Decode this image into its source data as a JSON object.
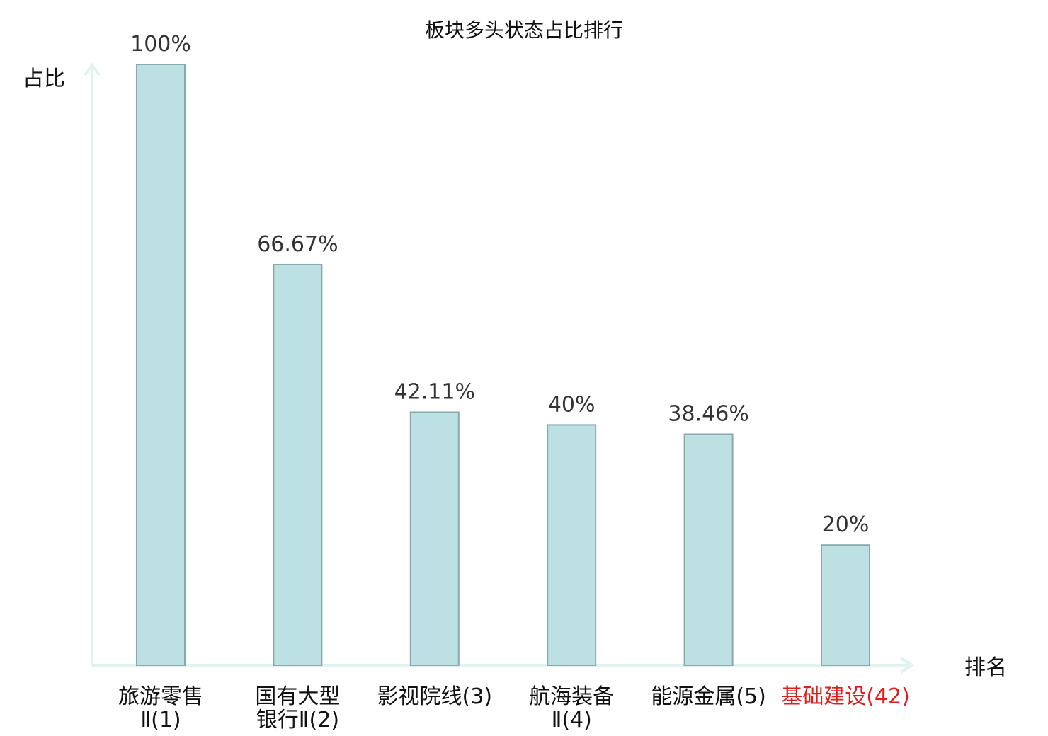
{
  "chart_data": {
    "type": "bar",
    "title": "板块多头状态占比排行",
    "ylabel": "占比",
    "xlabel": "排名",
    "ylim": [
      0,
      100
    ],
    "grid": false,
    "categories": [
      {
        "lines": [
          "旅游零售",
          "Ⅱ(1)"
        ],
        "highlight": false
      },
      {
        "lines": [
          "国有大型",
          "银行Ⅱ(2)"
        ],
        "highlight": false
      },
      {
        "lines": [
          "影视院线(3)"
        ],
        "highlight": false
      },
      {
        "lines": [
          "航海装备",
          "Ⅱ(4)"
        ],
        "highlight": false
      },
      {
        "lines": [
          "能源金属(5)"
        ],
        "highlight": false
      },
      {
        "lines": [
          "基础建设(42)"
        ],
        "highlight": true
      }
    ],
    "values": [
      100,
      66.67,
      42.11,
      40,
      38.46,
      20
    ],
    "value_labels": [
      "100%",
      "66.67%",
      "42.11%",
      "40%",
      "38.46%",
      "20%"
    ],
    "colors": {
      "bar_fill": "#bde0e3",
      "bar_stroke": "#8aa9ac",
      "axis": "#e2f2ef",
      "highlight": "#e21b1b"
    }
  }
}
